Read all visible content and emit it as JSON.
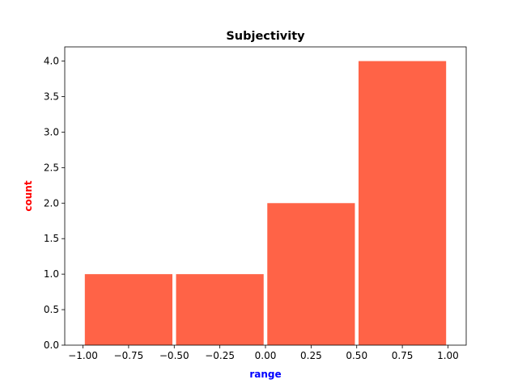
{
  "chart_data": {
    "type": "bar",
    "title": "Subjectivity",
    "xlabel": "range",
    "ylabel": "count",
    "xlabel_color": "#0000ff",
    "ylabel_color": "#ff0000",
    "bar_color": "#ff6347",
    "bins": [
      {
        "start": -0.99,
        "end": -0.51,
        "count": 1
      },
      {
        "start": -0.49,
        "end": -0.01,
        "count": 1
      },
      {
        "start": 0.01,
        "end": 0.49,
        "count": 2
      },
      {
        "start": 0.51,
        "end": 0.99,
        "count": 4
      }
    ],
    "xlim": [
      -1.1,
      1.1
    ],
    "ylim": [
      0,
      4.2
    ],
    "xticks": [
      -1.0,
      -0.75,
      -0.5,
      -0.25,
      0.0,
      0.25,
      0.5,
      0.75,
      1.0
    ],
    "xtick_labels": [
      "−1.00",
      "−0.75",
      "−0.50",
      "−0.25",
      "0.00",
      "0.25",
      "0.50",
      "0.75",
      "1.00"
    ],
    "yticks": [
      0,
      0.5,
      1.0,
      1.5,
      2.0,
      2.5,
      3.0,
      3.5,
      4.0
    ],
    "ytick_labels": [
      "0.0",
      "0.5",
      "1.0",
      "1.5",
      "2.0",
      "2.5",
      "3.0",
      "3.5",
      "4.0"
    ],
    "grid": false,
    "legend": "none"
  }
}
